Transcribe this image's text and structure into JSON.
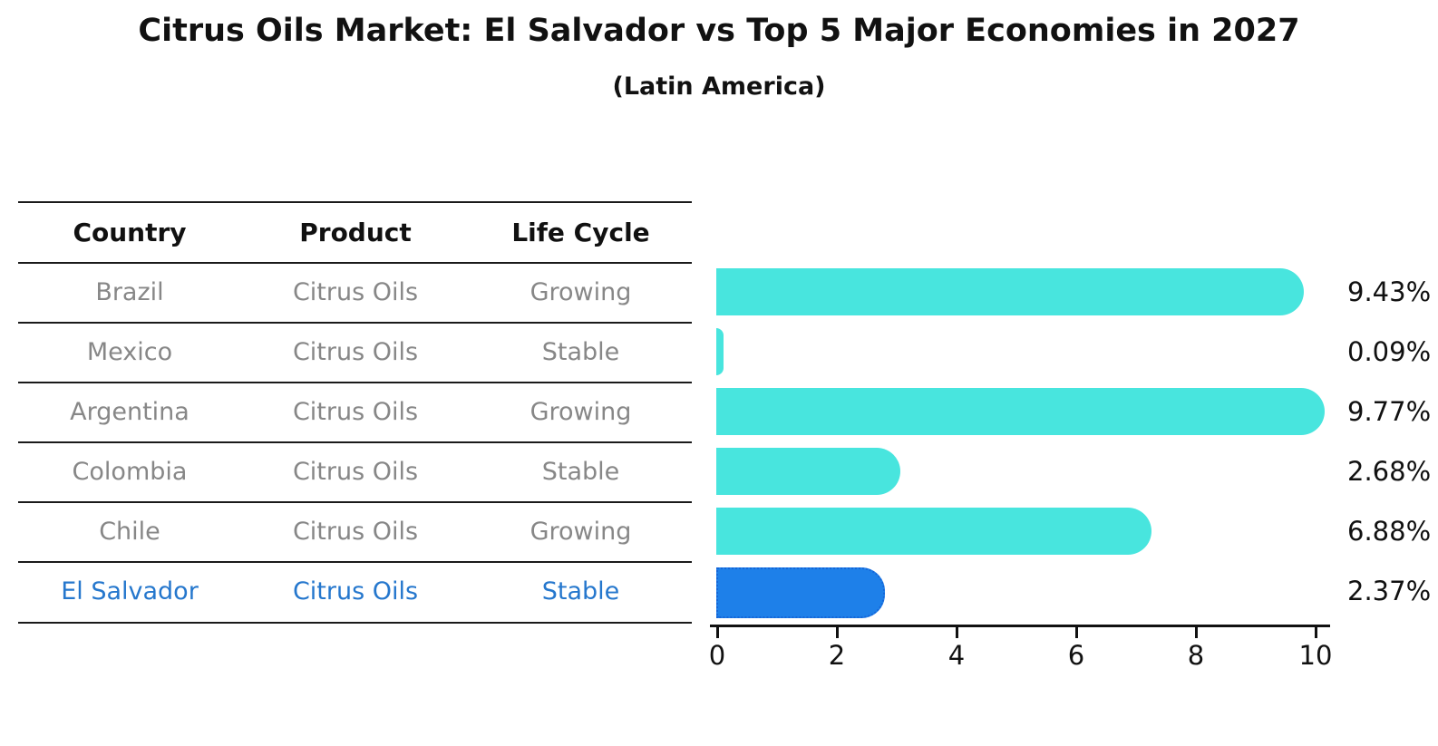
{
  "chart_data": {
    "type": "bar",
    "title": "Citrus Oils Market: El Salvador vs Top 5 Major Economies in 2027",
    "subtitle": "(Latin America)",
    "table_headers": [
      "Country",
      "Product",
      "Life Cycle"
    ],
    "rows": [
      {
        "country": "Brazil",
        "product": "Citrus Oils",
        "life_cycle": "Growing",
        "value": 9.43,
        "label": "9.43%",
        "highlight": false
      },
      {
        "country": "Mexico",
        "product": "Citrus Oils",
        "life_cycle": "Stable",
        "value": 0.09,
        "label": "0.09%",
        "highlight": false
      },
      {
        "country": "Argentina",
        "product": "Citrus Oils",
        "life_cycle": "Growing",
        "value": 9.77,
        "label": "9.77%",
        "highlight": false
      },
      {
        "country": "Colombia",
        "product": "Citrus Oils",
        "life_cycle": "Stable",
        "value": 2.68,
        "label": "2.68%",
        "highlight": false
      },
      {
        "country": "Chile",
        "product": "Citrus Oils",
        "life_cycle": "Growing",
        "value": 6.88,
        "label": "6.88%",
        "highlight": false
      },
      {
        "country": "El Salvador",
        "product": "Citrus Oils",
        "life_cycle": "Stable",
        "value": 2.37,
        "label": "2.37%",
        "highlight": true
      }
    ],
    "xlabel": "",
    "ylabel": "",
    "xlim": [
      0,
      10
    ],
    "xticks": [
      0,
      2,
      4,
      6,
      8,
      10
    ],
    "legend": "none",
    "grid": false,
    "colors": {
      "bar": "#48e5de",
      "highlight_bar": "#1e80e9",
      "highlight_border": "#1565d8",
      "highlight_text": "#2577cd",
      "row_text": "#878787",
      "header_text": "#111111"
    }
  }
}
